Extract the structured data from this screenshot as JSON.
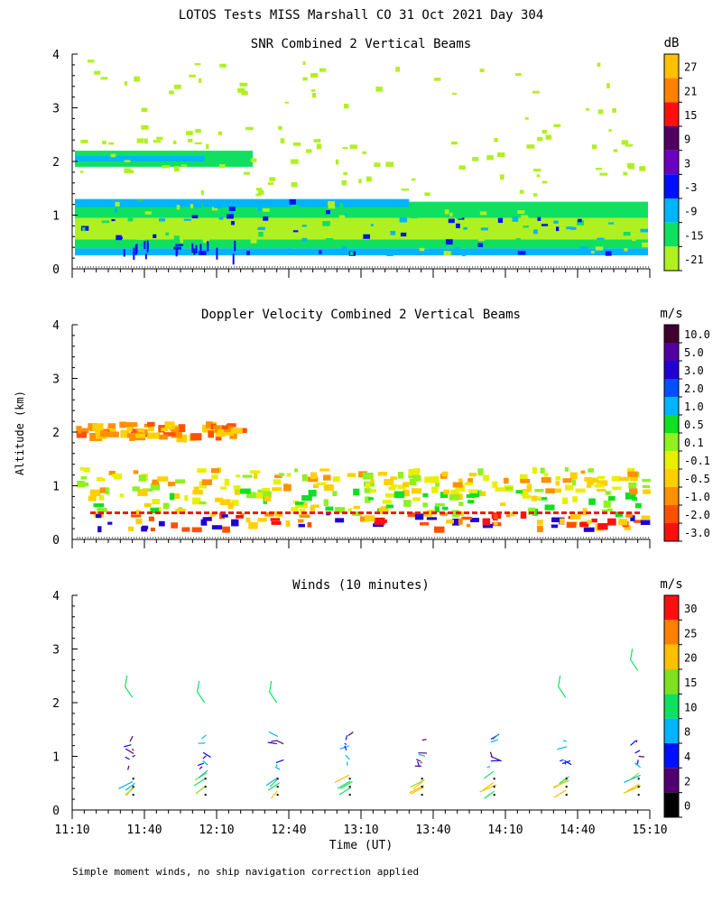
{
  "figure": {
    "title": "LOTOS Tests MISS Marshall CO  31 Oct 2021 Day 304",
    "y_axis_label": "Altitude (km)",
    "x_axis_label": "Time (UT)",
    "footnote": "Simple moment winds, no ship navigation correction applied",
    "x_ticks": [
      "11:10",
      "11:40",
      "12:10",
      "12:40",
      "13:10",
      "13:40",
      "14:10",
      "14:40",
      "15:10"
    ],
    "y_ticks": [
      "0",
      "1",
      "2",
      "3",
      "4"
    ]
  },
  "chart_data": [
    {
      "type": "heatmap",
      "title": "SNR Combined 2 Vertical Beams",
      "xlabel": "Time (UT)",
      "ylabel": "Altitude (km)",
      "xlim": [
        "11:10",
        "15:10"
      ],
      "ylim": [
        0,
        4
      ],
      "units": "dB",
      "colorbar": {
        "labels": [
          "27",
          "21",
          "15",
          "9",
          "3",
          "-3",
          "-9",
          "-15",
          "-21"
        ],
        "colors": [
          "#ffc000",
          "#ff8000",
          "#ff1010",
          "#500060",
          "#6a00c0",
          "#0010ff",
          "#00b4ff",
          "#10e060",
          "#b0f020"
        ]
      },
      "bands": [
        {
          "alt": [
            0.25,
            0.35
          ],
          "level": "-9"
        },
        {
          "alt": [
            0.35,
            0.55
          ],
          "level": "-15"
        },
        {
          "alt": [
            0.55,
            0.9
          ],
          "level": "-21 to -15"
        },
        {
          "alt": [
            0.9,
            1.25
          ],
          "level": "-15 to -9"
        },
        {
          "alt": [
            1.9,
            2.2
          ],
          "level": "-15",
          "time": [
            "11:10",
            "12:20"
          ]
        }
      ]
    },
    {
      "type": "heatmap",
      "title": "Doppler Velocity Combined 2 Vertical Beams",
      "xlabel": "Time (UT)",
      "ylabel": "Altitude (km)",
      "xlim": [
        "11:10",
        "15:10"
      ],
      "ylim": [
        0,
        4
      ],
      "units": "m/s",
      "colorbar": {
        "labels": [
          "10.0",
          "5.0",
          "3.0",
          "2.0",
          "1.0",
          "0.5",
          "0.1",
          "-0.1",
          "-0.5",
          "-1.0",
          "-2.0",
          "-3.0"
        ],
        "colors": [
          "#400030",
          "#5000a0",
          "#2000d0",
          "#0050ff",
          "#00b4ff",
          "#10e020",
          "#90f020",
          "#e8f000",
          "#ffd000",
          "#ff9000",
          "#ff5000",
          "#ff1010"
        ]
      }
    },
    {
      "type": "scatter",
      "title": "Winds (10 minutes)",
      "xlabel": "Time (UT)",
      "ylabel": "Altitude (km)",
      "xlim": [
        "11:10",
        "15:10"
      ],
      "ylim": [
        0,
        4
      ],
      "units": "m/s",
      "colorbar": {
        "labels": [
          "30",
          "25",
          "20",
          "15",
          "10",
          "8",
          "4",
          "2",
          "0"
        ],
        "colors": [
          "#ff1010",
          "#ff8000",
          "#ffc000",
          "#80e020",
          "#10e060",
          "#00b4ff",
          "#0010ff",
          "#500070",
          "#000000"
        ]
      },
      "profile_times": [
        "11:35",
        "12:05",
        "12:35",
        "13:05",
        "13:35",
        "14:05",
        "14:35",
        "15:05"
      ],
      "upper_barbs": [
        {
          "time": "11:35",
          "alt": 2.3,
          "speed": 15
        },
        {
          "time": "12:05",
          "alt": 2.2,
          "speed": 15
        },
        {
          "time": "12:35",
          "alt": 2.2,
          "speed": 15
        },
        {
          "time": "14:35",
          "alt": 2.3,
          "speed": 15
        },
        {
          "time": "15:05",
          "alt": 2.8,
          "speed": 15
        }
      ]
    }
  ]
}
